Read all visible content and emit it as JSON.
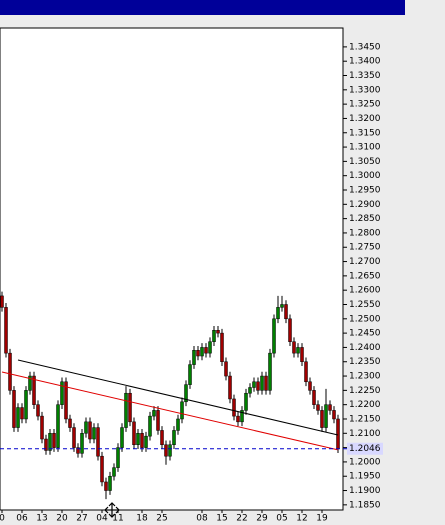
{
  "chart_data": {
    "type": "candlestick",
    "categories": [
      "0",
      null,
      null,
      null,
      null,
      "06",
      null,
      null,
      null,
      null,
      "13",
      null,
      null,
      null,
      null,
      "20",
      null,
      null,
      null,
      null,
      "27",
      null,
      null,
      null,
      null,
      "04",
      null,
      null,
      null,
      "11",
      null,
      null,
      null,
      null,
      null,
      "18",
      null,
      null,
      null,
      null,
      "25",
      null,
      null,
      null,
      null,
      null,
      null,
      null,
      null,
      null,
      "08",
      null,
      null,
      null,
      null,
      "15",
      null,
      null,
      null,
      null,
      "22",
      null,
      null,
      null,
      null,
      "29",
      null,
      null,
      null,
      null,
      "05",
      null,
      null,
      null,
      null,
      "12",
      null,
      null,
      null,
      null,
      "19",
      null,
      null,
      null,
      null
    ],
    "open": [
      1.258,
      1.254,
      1.238,
      1.225,
      1.212,
      1.219,
      1.215,
      1.225,
      1.23,
      1.22,
      1.216,
      1.208,
      1.204,
      1.21,
      1.205,
      1.22,
      1.228,
      1.215,
      1.212,
      1.205,
      1.203,
      1.21,
      1.214,
      1.208,
      1.212,
      1.202,
      1.193,
      1.19,
      1.195,
      1.198,
      1.205,
      1.212,
      1.224,
      1.214,
      1.206,
      1.21,
      1.205,
      1.209,
      1.216,
      1.218,
      1.211,
      1.206,
      1.202,
      1.206,
      1.211,
      1.215,
      1.221,
      1.227,
      1.234,
      1.239,
      1.237,
      1.24,
      1.238,
      1.242,
      1.246,
      1.245,
      1.235,
      1.23,
      1.222,
      1.216,
      1.214,
      1.218,
      1.224,
      1.226,
      1.228,
      1.225,
      1.23,
      1.225,
      1.238,
      1.25,
      1.254,
      1.255,
      1.25,
      1.242,
      1.238,
      1.24,
      1.235,
      1.228,
      1.225,
      1.22,
      1.218,
      1.212,
      1.22,
      1.218,
      1.215
    ],
    "high": [
      1.2595,
      1.2555,
      1.2395,
      1.2265,
      1.2205,
      1.2205,
      1.2265,
      1.2315,
      1.2315,
      1.2215,
      1.2175,
      1.2095,
      1.2115,
      1.2115,
      1.2215,
      1.2295,
      1.2295,
      1.2165,
      1.2135,
      1.2065,
      1.2115,
      1.2155,
      1.2155,
      1.2135,
      1.2135,
      1.2035,
      1.1945,
      1.1965,
      1.1995,
      1.2065,
      1.2135,
      1.2265,
      1.2255,
      1.2155,
      1.2115,
      1.2115,
      1.2105,
      1.2175,
      1.2195,
      1.2195,
      1.2125,
      1.2075,
      1.2075,
      1.2125,
      1.2165,
      1.2225,
      1.2285,
      1.2355,
      1.2405,
      1.2405,
      1.2415,
      1.2415,
      1.2435,
      1.2475,
      1.2475,
      1.2465,
      1.2365,
      1.2315,
      1.2235,
      1.2175,
      1.2195,
      1.2255,
      1.2275,
      1.2295,
      1.2295,
      1.2315,
      1.2315,
      1.2395,
      1.2515,
      1.258,
      1.258,
      1.2565,
      1.2515,
      1.2435,
      1.2415,
      1.2415,
      1.2365,
      1.2295,
      1.2265,
      1.2215,
      1.2195,
      1.2255,
      1.2215,
      1.2195,
      1.2165
    ],
    "low": [
      1.2525,
      1.2365,
      1.2235,
      1.2105,
      1.2105,
      1.2135,
      1.2135,
      1.2235,
      1.2185,
      1.2145,
      1.2065,
      1.2025,
      1.2025,
      1.2035,
      1.2035,
      1.2185,
      1.2135,
      1.2105,
      1.2035,
      1.2015,
      1.2015,
      1.2085,
      1.2065,
      1.2065,
      1.2005,
      1.1915,
      1.187,
      1.1885,
      1.1935,
      1.1965,
      1.2035,
      1.2105,
      1.2125,
      1.2045,
      1.2045,
      1.2035,
      1.2035,
      1.2075,
      1.2145,
      1.2095,
      1.2045,
      1.199,
      1.2005,
      1.2045,
      1.2095,
      1.2135,
      1.2195,
      1.2255,
      1.2325,
      1.2355,
      1.2355,
      1.2365,
      1.2365,
      1.2405,
      1.2435,
      1.2335,
      1.2285,
      1.2205,
      1.2145,
      1.2125,
      1.2125,
      1.2165,
      1.2225,
      1.2245,
      1.2235,
      1.2235,
      1.2235,
      1.2235,
      1.2365,
      1.2485,
      1.2525,
      1.2485,
      1.2405,
      1.2365,
      1.2365,
      1.2335,
      1.2265,
      1.2235,
      1.2185,
      1.2165,
      1.2105,
      1.2105,
      1.2165,
      1.2135,
      1.2031
    ],
    "close": [
      1.254,
      1.238,
      1.225,
      1.212,
      1.219,
      1.215,
      1.225,
      1.23,
      1.22,
      1.216,
      1.208,
      1.204,
      1.21,
      1.205,
      1.22,
      1.228,
      1.215,
      1.212,
      1.205,
      1.203,
      1.21,
      1.214,
      1.208,
      1.212,
      1.202,
      1.193,
      1.19,
      1.195,
      1.198,
      1.205,
      1.212,
      1.224,
      1.214,
      1.206,
      1.21,
      1.205,
      1.209,
      1.216,
      1.218,
      1.211,
      1.206,
      1.202,
      1.206,
      1.211,
      1.215,
      1.221,
      1.227,
      1.234,
      1.239,
      1.237,
      1.24,
      1.238,
      1.242,
      1.246,
      1.245,
      1.235,
      1.23,
      1.222,
      1.216,
      1.214,
      1.218,
      1.224,
      1.226,
      1.228,
      1.225,
      1.23,
      1.225,
      1.238,
      1.25,
      1.254,
      1.255,
      1.25,
      1.242,
      1.238,
      1.24,
      1.235,
      1.228,
      1.225,
      1.22,
      1.218,
      1.212,
      1.22,
      1.218,
      1.215,
      1.2046
    ],
    "up_color": "#008000",
    "down_color": "#a00000",
    "trendlines": [
      {
        "color": "#000000",
        "x": [
          4,
          84
        ],
        "values": [
          1.2356,
          1.2094
        ]
      },
      {
        "color": "#e00000",
        "x": [
          0,
          84
        ],
        "values": [
          1.2314,
          1.2042
        ]
      }
    ],
    "last_price": 1.2046,
    "last_color": "#0000cc",
    "ylim": [
      1.1832,
      1.3516
    ],
    "yticks": [
      {
        "value": 1.345,
        "label": "1.3450"
      },
      {
        "value": 1.34,
        "label": "1.3400"
      },
      {
        "value": 1.335,
        "label": "1.3350"
      },
      {
        "value": 1.33,
        "label": "1.3300"
      },
      {
        "value": 1.325,
        "label": "1.3250"
      },
      {
        "value": 1.32,
        "label": "1.3200"
      },
      {
        "value": 1.315,
        "label": "1.3150"
      },
      {
        "value": 1.31,
        "label": "1.3100"
      },
      {
        "value": 1.305,
        "label": "1.3050"
      },
      {
        "value": 1.3,
        "label": "1.3000"
      },
      {
        "value": 1.295,
        "label": "1.2950"
      },
      {
        "value": 1.29,
        "label": "1.2900"
      },
      {
        "value": 1.285,
        "label": "1.2850"
      },
      {
        "value": 1.28,
        "label": "1.2800"
      },
      {
        "value": 1.275,
        "label": "1.2750"
      },
      {
        "value": 1.27,
        "label": "1.2700"
      },
      {
        "value": 1.265,
        "label": "1.2650"
      },
      {
        "value": 1.26,
        "label": "1.2600"
      },
      {
        "value": 1.255,
        "label": "1.2550"
      },
      {
        "value": 1.25,
        "label": "1.2500"
      },
      {
        "value": 1.245,
        "label": "1.2450"
      },
      {
        "value": 1.24,
        "label": "1.2400"
      },
      {
        "value": 1.235,
        "label": "1.2350"
      },
      {
        "value": 1.23,
        "label": "1.2300"
      },
      {
        "value": 1.225,
        "label": "1.2250"
      },
      {
        "value": 1.22,
        "label": "1.2200"
      },
      {
        "value": 1.215,
        "label": "1.2150"
      },
      {
        "value": 1.21,
        "label": "1.2100"
      },
      {
        "value": 1.205,
        "label": "1.2050"
      },
      {
        "value": 1.2,
        "label": "1.2000"
      },
      {
        "value": 1.195,
        "label": "1.1950"
      },
      {
        "value": 1.19,
        "label": "1.1900"
      },
      {
        "value": 1.185,
        "label": "1.1850"
      }
    ]
  }
}
